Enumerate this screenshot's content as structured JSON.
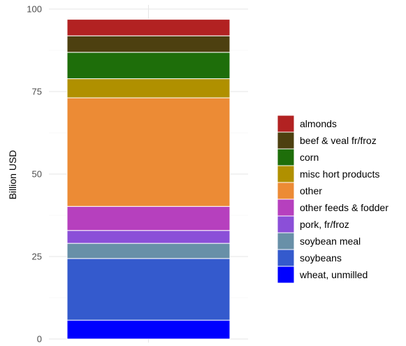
{
  "chart_data": {
    "type": "bar",
    "stacked": true,
    "title": "",
    "xlabel": "",
    "ylabel": "Billion USD",
    "ylim": [
      0,
      100
    ],
    "y_ticks": [
      0,
      25,
      50,
      75,
      100
    ],
    "grid": true,
    "legend_position": "right",
    "categories": [
      ""
    ],
    "series": [
      {
        "name": "almonds",
        "values": [
          5.0
        ],
        "color": "#b22222"
      },
      {
        "name": "beef & veal fr/froz",
        "values": [
          5.0
        ],
        "color": "#4d4010"
      },
      {
        "name": "corn",
        "values": [
          8.0
        ],
        "color": "#1e6e0a"
      },
      {
        "name": "misc hort products",
        "values": [
          5.8
        ],
        "color": "#b09000"
      },
      {
        "name": "other",
        "values": [
          32.9
        ],
        "color": "#ec8b35"
      },
      {
        "name": "other feeds & fodder",
        "values": [
          7.3
        ],
        "color": "#b640be"
      },
      {
        "name": "pork, fr/froz",
        "values": [
          3.9
        ],
        "color": "#8b4fd8"
      },
      {
        "name": "soybean meal",
        "values": [
          4.6
        ],
        "color": "#6890a8"
      },
      {
        "name": "soybeans",
        "values": [
          18.7
        ],
        "color": "#345acd"
      },
      {
        "name": "wheat, unmilled",
        "values": [
          5.7
        ],
        "color": "#0000ff"
      }
    ]
  }
}
